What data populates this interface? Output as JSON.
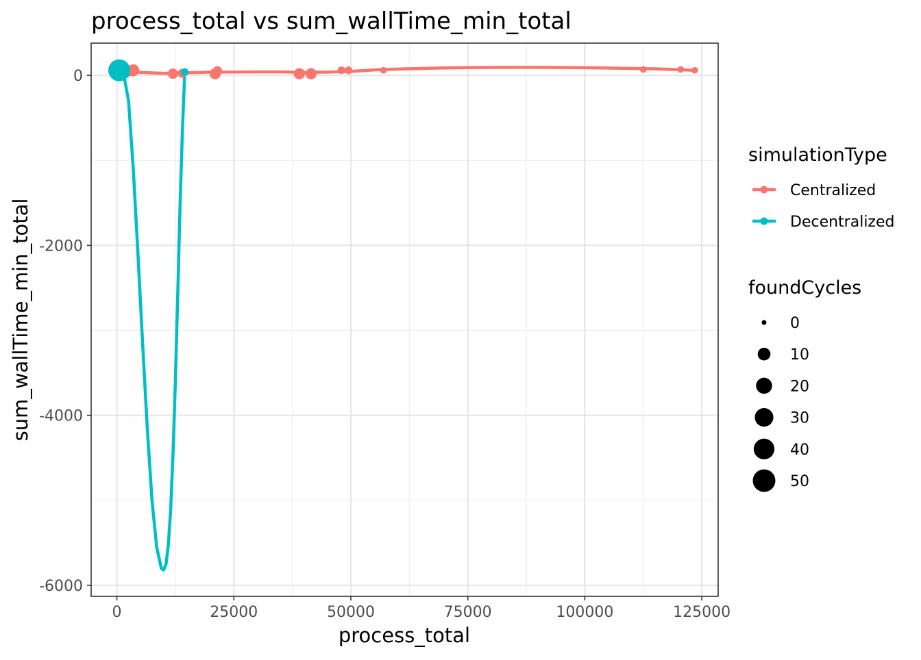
{
  "chart_data": {
    "type": "scatter",
    "title": "process_total  vs  sum_wallTime_min_total",
    "xlabel": "process_total",
    "ylabel": "sum_wallTime_min_total",
    "xlim": [
      -5500,
      128500
    ],
    "ylim": [
      -6130,
      380
    ],
    "x_ticks": [
      0,
      25000,
      50000,
      75000,
      100000,
      125000
    ],
    "y_ticks": [
      0,
      -2000,
      -4000,
      -6000
    ],
    "grid": true,
    "legend_placement": "right",
    "legends": {
      "color": {
        "title": "simulationType",
        "entries": [
          {
            "label": "Centralized",
            "color": "#F8766D"
          },
          {
            "label": "Decentralized",
            "color": "#00BFC4"
          }
        ]
      },
      "size": {
        "title": "foundCycles",
        "entries": [
          {
            "label": "0",
            "value": 0
          },
          {
            "label": "10",
            "value": 10
          },
          {
            "label": "20",
            "value": 20
          },
          {
            "label": "30",
            "value": 30
          },
          {
            "label": "40",
            "value": 40
          },
          {
            "label": "50",
            "value": 50
          }
        ]
      }
    },
    "series": [
      {
        "name": "Centralized",
        "color": "#F8766D",
        "points": [
          {
            "x": 2000,
            "y": 40,
            "size": 8
          },
          {
            "x": 3500,
            "y": 60,
            "size": 10
          },
          {
            "x": 12000,
            "y": 20,
            "size": 6
          },
          {
            "x": 14000,
            "y": 25,
            "size": 4
          },
          {
            "x": 21000,
            "y": 20,
            "size": 8
          },
          {
            "x": 21500,
            "y": 55,
            "size": 4
          },
          {
            "x": 39000,
            "y": 20,
            "size": 8
          },
          {
            "x": 41500,
            "y": 20,
            "size": 8
          },
          {
            "x": 48000,
            "y": 60,
            "size": 2
          },
          {
            "x": 49500,
            "y": 60,
            "size": 2
          },
          {
            "x": 57000,
            "y": 60,
            "size": 1
          },
          {
            "x": 112500,
            "y": 70,
            "size": 1
          },
          {
            "x": 120500,
            "y": 70,
            "size": 1
          },
          {
            "x": 123500,
            "y": 60,
            "size": 1
          }
        ],
        "smooth": [
          [
            2000,
            40
          ],
          [
            5000,
            35
          ],
          [
            10000,
            25
          ],
          [
            15000,
            30
          ],
          [
            20000,
            38
          ],
          [
            25000,
            40
          ],
          [
            30000,
            42
          ],
          [
            35000,
            42
          ],
          [
            40000,
            35
          ],
          [
            45000,
            38
          ],
          [
            50000,
            48
          ],
          [
            55000,
            65
          ],
          [
            60000,
            75
          ],
          [
            65000,
            82
          ],
          [
            70000,
            88
          ],
          [
            75000,
            92
          ],
          [
            80000,
            94
          ],
          [
            85000,
            95
          ],
          [
            90000,
            95
          ],
          [
            95000,
            93
          ],
          [
            100000,
            91
          ],
          [
            105000,
            87
          ],
          [
            110000,
            82
          ],
          [
            115000,
            78
          ],
          [
            120000,
            68
          ],
          [
            123500,
            60
          ]
        ]
      },
      {
        "name": "Decentralized",
        "color": "#00BFC4",
        "points": [
          {
            "x": 500,
            "y": 60,
            "size": 58
          },
          {
            "x": 14500,
            "y": 40,
            "size": 2
          }
        ],
        "smooth": [
          [
            500,
            60
          ],
          [
            1500,
            0
          ],
          [
            2500,
            -300
          ],
          [
            3500,
            -1100
          ],
          [
            4500,
            -2100
          ],
          [
            5500,
            -3150
          ],
          [
            6500,
            -4150
          ],
          [
            7500,
            -5000
          ],
          [
            8500,
            -5550
          ],
          [
            9500,
            -5800
          ],
          [
            10000,
            -5820
          ],
          [
            10500,
            -5750
          ],
          [
            11000,
            -5520
          ],
          [
            11500,
            -5100
          ],
          [
            12000,
            -4450
          ],
          [
            12500,
            -3600
          ],
          [
            13000,
            -2600
          ],
          [
            13500,
            -1550
          ],
          [
            14000,
            -650
          ],
          [
            14500,
            40
          ]
        ]
      }
    ]
  }
}
